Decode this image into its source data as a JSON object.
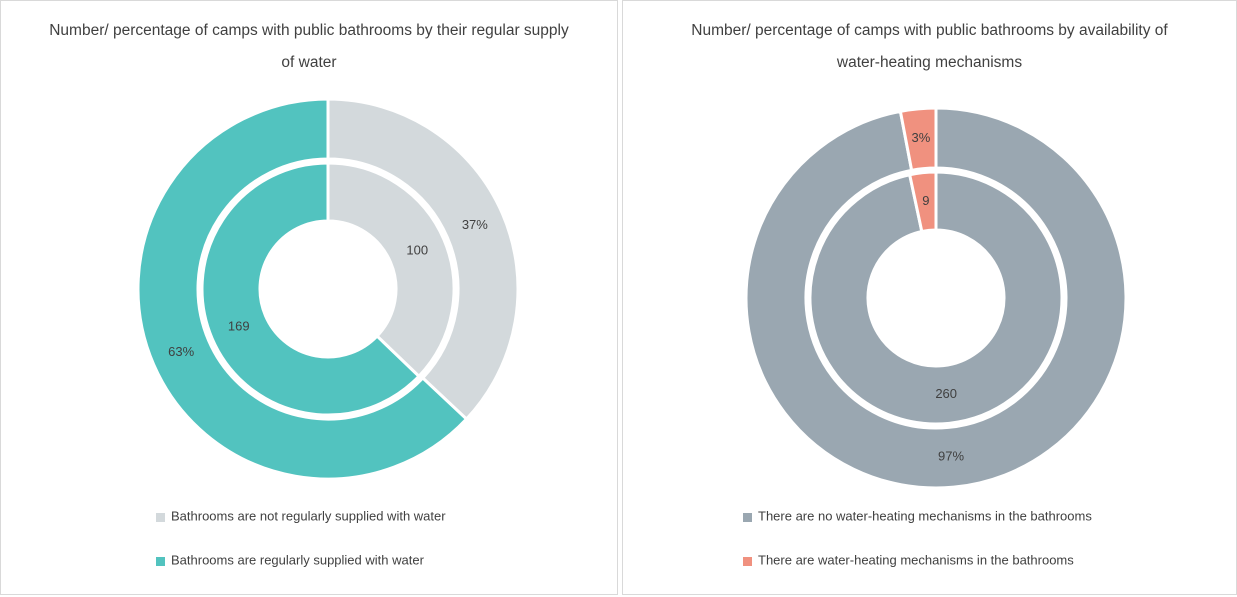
{
  "chart_data": [
    {
      "type": "donut",
      "title": "Number/ percentage of camps with public bathrooms by their regular supply of water",
      "categories": [
        "Bathrooms are not regularly supplied with water",
        "Bathrooms are regularly supplied with water"
      ],
      "colors": [
        "#d3d9dc",
        "#52c3bf"
      ],
      "series": [
        {
          "values": [
            100,
            169
          ]
        },
        {
          "values": [
            37,
            63
          ],
          "value_labels": [
            "37%",
            "63%"
          ]
        }
      ]
    },
    {
      "type": "donut",
      "title": "Number/ percentage of camps with public bathrooms by availability of water-heating mechanisms",
      "categories": [
        "There are no water-heating mechanisms in the bathrooms",
        "There are water-heating mechanisms in the bathrooms"
      ],
      "colors": [
        "#9aa7b1",
        "#f0917f"
      ],
      "series": [
        {
          "values": [
            260,
            9
          ]
        },
        {
          "values": [
            97,
            3
          ],
          "value_labels": [
            "97%",
            "3%"
          ]
        }
      ]
    }
  ]
}
